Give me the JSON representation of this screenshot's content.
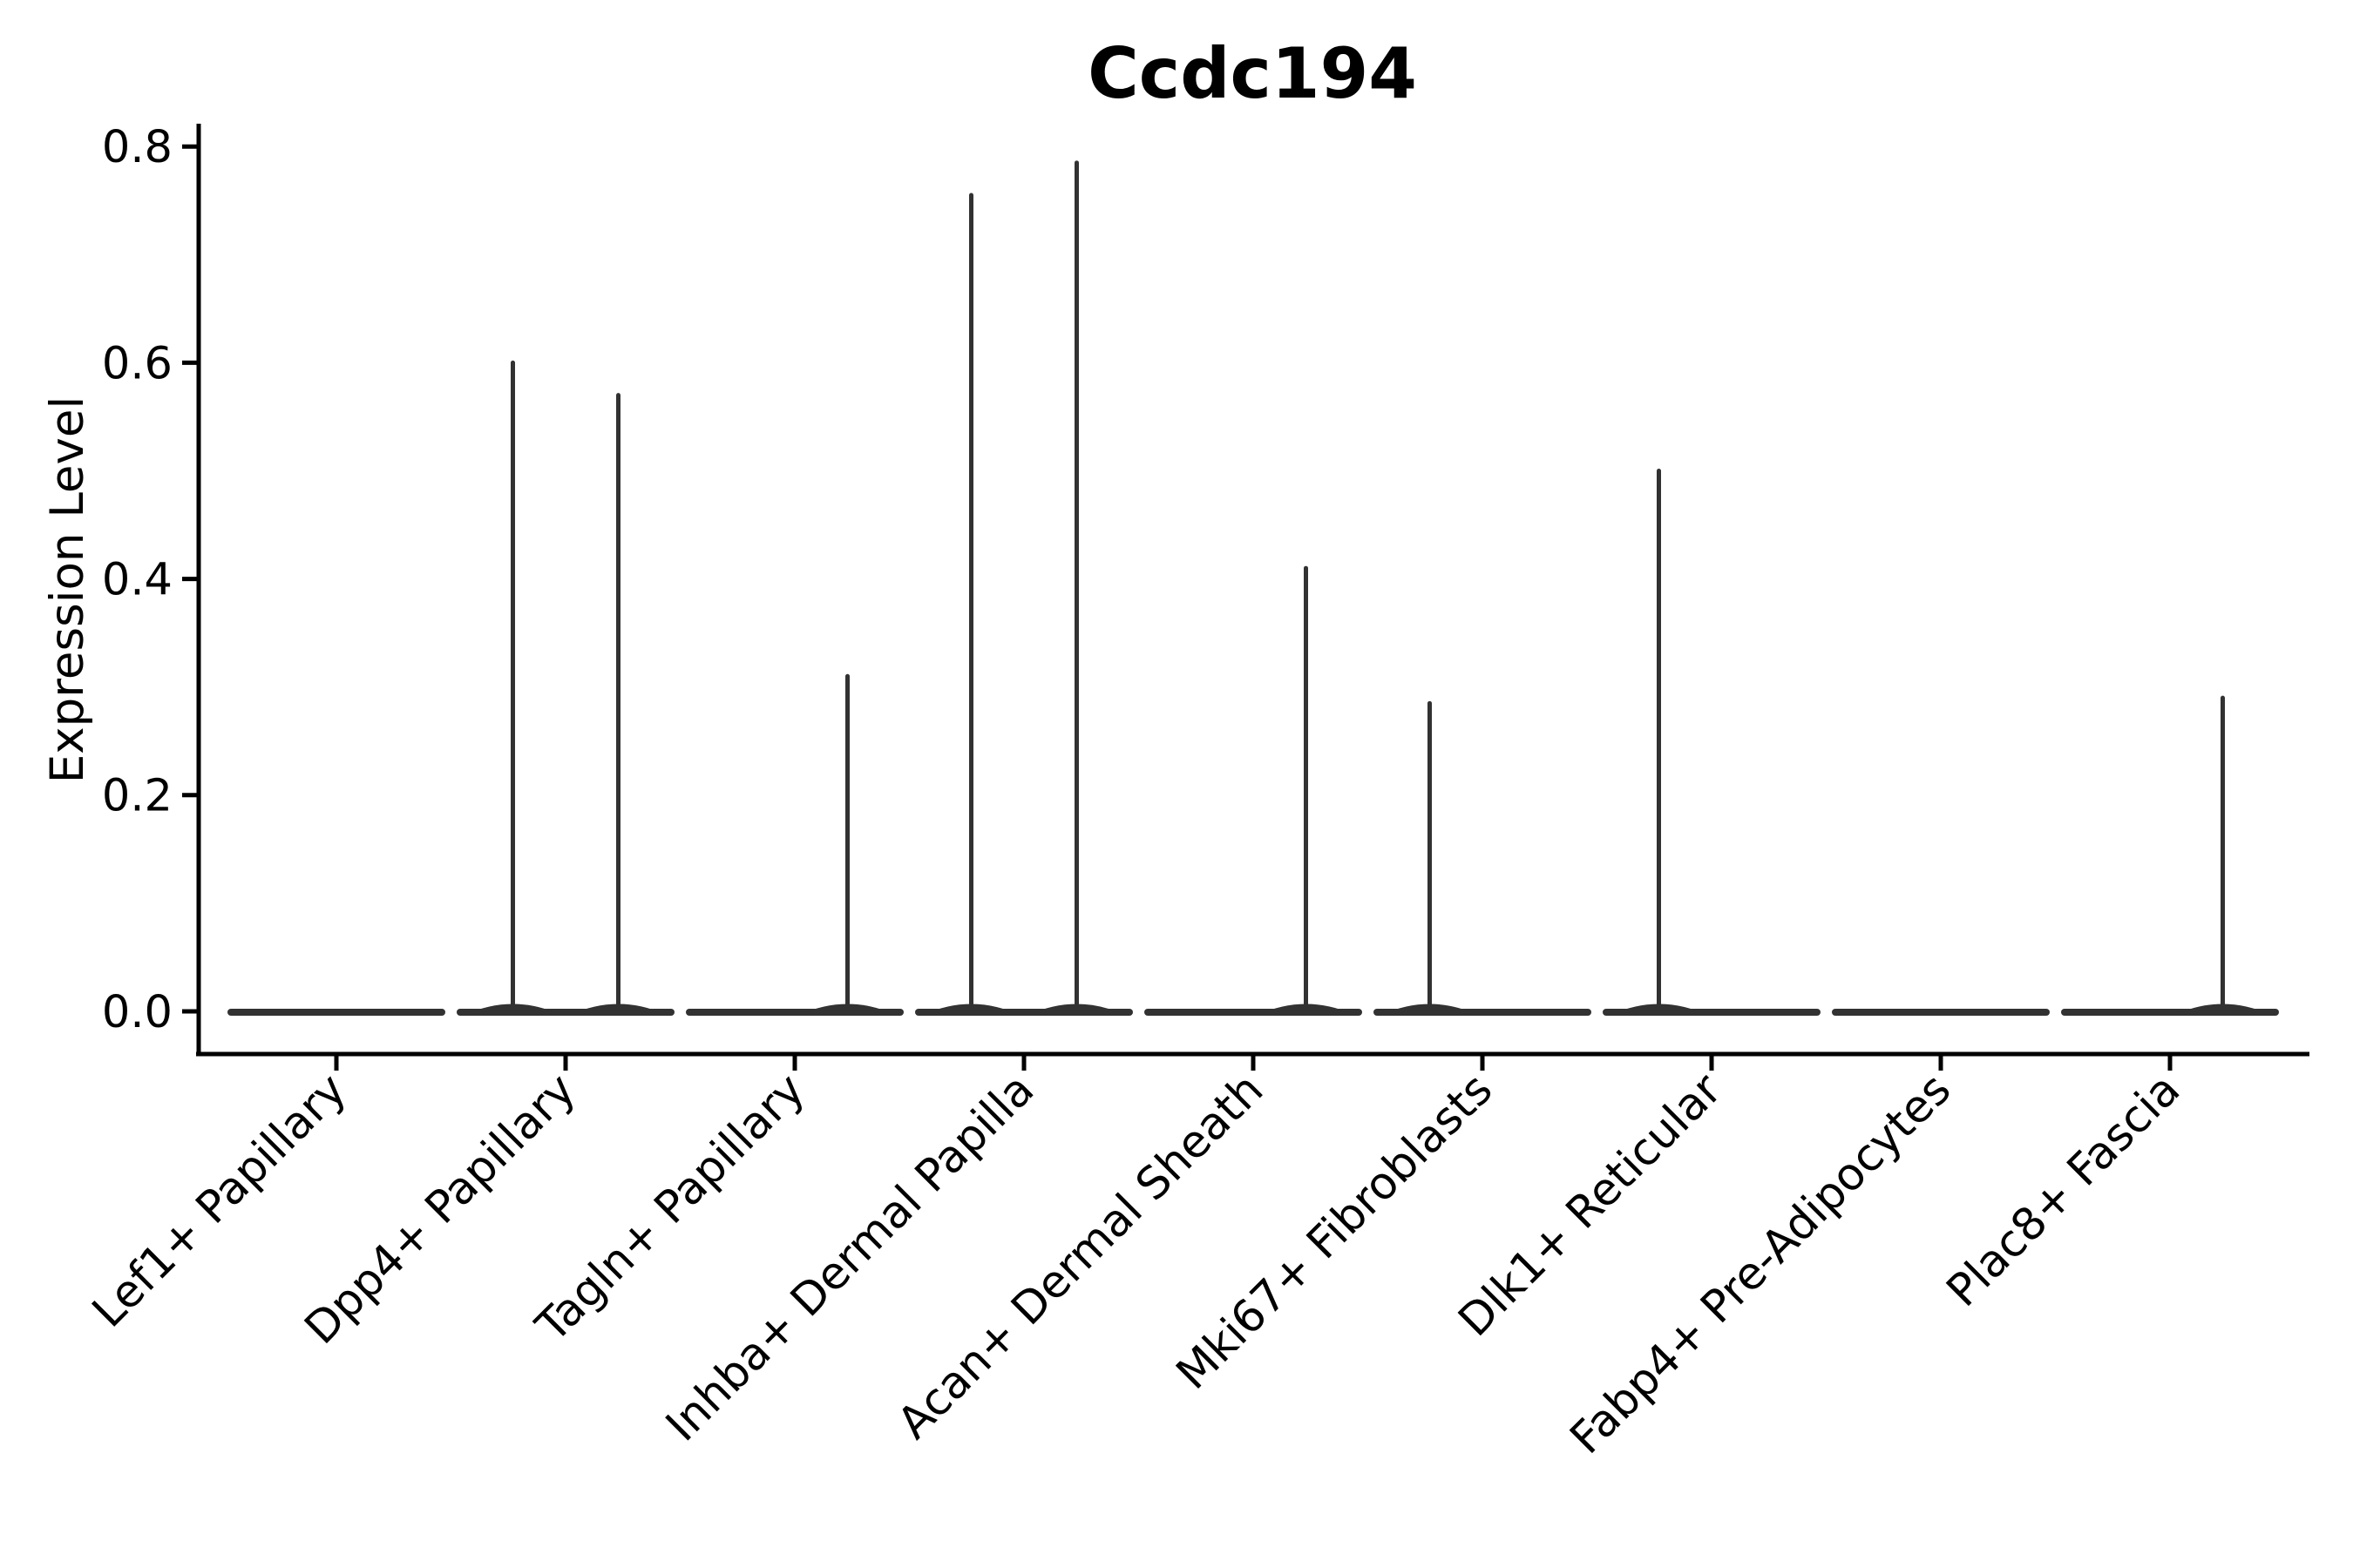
{
  "chart_data": {
    "type": "violin",
    "title": "Ccdc194",
    "xlabel": "",
    "ylabel": "Expression Level",
    "ylim": [
      0.0,
      0.82
    ],
    "y_ticks": [
      0.0,
      0.2,
      0.4,
      0.6,
      0.8
    ],
    "y_tick_labels": [
      "0.0",
      "0.2",
      "0.4",
      "0.6",
      "0.8"
    ],
    "grid": false,
    "legend": "none",
    "categories": [
      "Lef1+ Papillary",
      "Dpp4+ Papillary",
      "Tagln+ Papillary",
      "Inhba+ Dermal Papilla",
      "Acan+ Dermal Sheath",
      "Mki67+ Fibroblasts",
      "Dlk1+ Reticular",
      "Fabp4+ Pre-Adipocytes",
      "Plac8+ Fascia"
    ],
    "violins": [
      {
        "category": "Lef1+ Papillary",
        "base_value": 0.0,
        "spikes": []
      },
      {
        "category": "Dpp4+ Papillary",
        "base_value": 0.0,
        "spikes": [
          {
            "side": "left",
            "max": 0.6
          },
          {
            "side": "right",
            "max": 0.57
          }
        ]
      },
      {
        "category": "Tagln+ Papillary",
        "base_value": 0.0,
        "spikes": [
          {
            "side": "right",
            "max": 0.31
          }
        ]
      },
      {
        "category": "Inhba+ Dermal Papilla",
        "base_value": 0.0,
        "spikes": [
          {
            "side": "left",
            "max": 0.755
          },
          {
            "side": "right",
            "max": 0.785
          }
        ]
      },
      {
        "category": "Acan+ Dermal Sheath",
        "base_value": 0.0,
        "spikes": [
          {
            "side": "right",
            "max": 0.41
          }
        ]
      },
      {
        "category": "Mki67+ Fibroblasts",
        "base_value": 0.0,
        "spikes": [
          {
            "side": "left",
            "max": 0.285
          }
        ]
      },
      {
        "category": "Dlk1+ Reticular",
        "base_value": 0.0,
        "spikes": [
          {
            "side": "left",
            "max": 0.5
          }
        ]
      },
      {
        "category": "Fabp4+ Pre-Adipocytes",
        "base_value": 0.0,
        "spikes": []
      },
      {
        "category": "Plac8+ Fascia",
        "base_value": 0.0,
        "spikes": [
          {
            "side": "right",
            "max": 0.29
          }
        ]
      }
    ],
    "colors": {
      "violin_line": "#323232",
      "spike_line": "#323232",
      "axis": "#000000",
      "text": "#000000",
      "background": "#ffffff"
    }
  }
}
